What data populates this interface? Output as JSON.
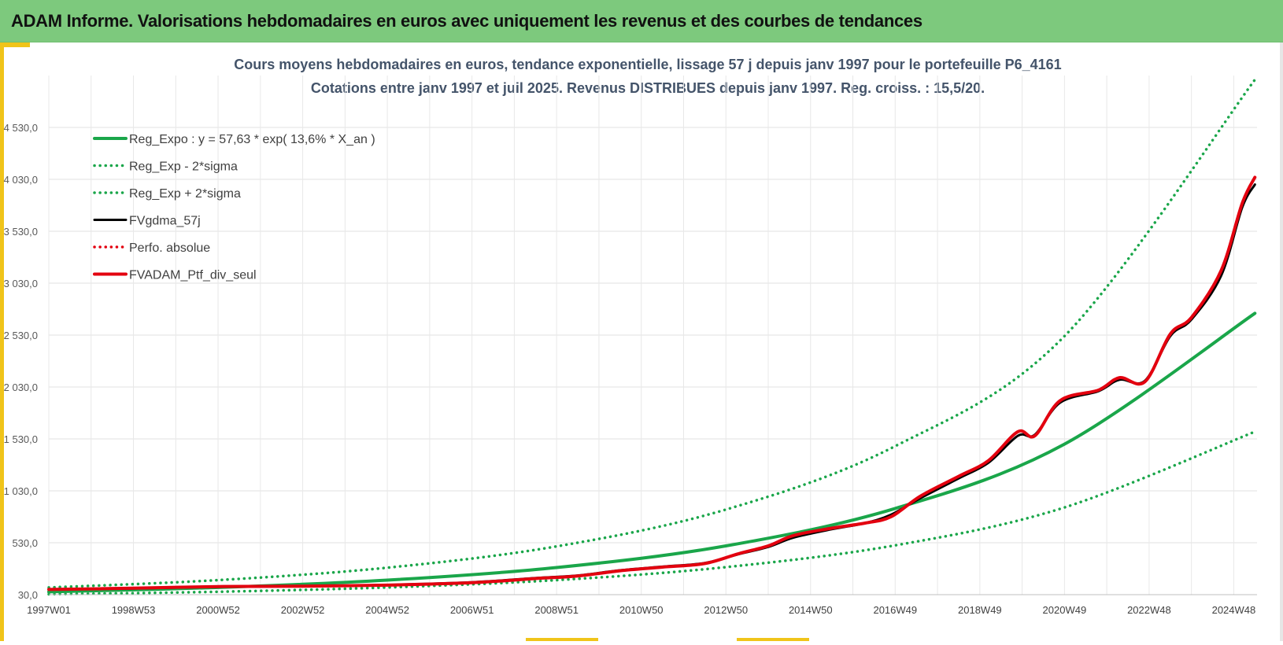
{
  "header": {
    "title": "ADAM Informe. Valorisations hebdomadaires en euros avec uniquement les revenus et des courbes de tendances"
  },
  "colors": {
    "header_bg": "#7dc97d",
    "accent": "#f0c419",
    "trend_green": "#1aa64a",
    "fv_black": "#000000",
    "portfolio_red": "#e3000f"
  },
  "chart_data": {
    "type": "line",
    "title": "Cours moyens hebdomadaires en euros, tendance exponentielle, lissage 57 j depuis janv 1997 pour le portefeuille P6_4161",
    "subtitle": "Cotations entre janv 1997 et juil 2025. Revenus DISTRIBUES depuis janv 1997. Reg. croiss. : 15,5/20.",
    "x_tick_labels": [
      "1997W01",
      "1998W53",
      "2000W52",
      "2002W52",
      "2004W52",
      "2006W51",
      "2008W51",
      "2010W50",
      "2012W50",
      "2014W50",
      "2016W49",
      "2018W49",
      "2020W49",
      "2022W48",
      "2024W48"
    ],
    "x_ticks_years": [
      1997.0,
      1999.0,
      2001.0,
      2003.0,
      2005.0,
      2007.0,
      2009.0,
      2011.0,
      2013.0,
      2015.0,
      2017.0,
      2019.0,
      2021.0,
      2023.0,
      2025.0
    ],
    "x_range": [
      1997.0,
      2025.55
    ],
    "y_tick_labels": [
      "30,0",
      "530,0",
      "1 030,0",
      "1 530,0",
      "2 030,0",
      "2 530,0",
      "3 030,0",
      "3 530,0",
      "4 030,0",
      "4 530,0"
    ],
    "y_ticks": [
      30,
      530,
      1030,
      1530,
      2030,
      2530,
      3030,
      3530,
      4030,
      4530
    ],
    "ylim": [
      30,
      5030
    ],
    "grid": true,
    "legend_position": "top-left",
    "series": [
      {
        "name": "Reg_Expo : y = 57,63 * exp( 13,6% *  X_an )",
        "style": "solid",
        "color": "#1aa64a",
        "x": [
          1997.0,
          2001.0,
          2005.0,
          2009.0,
          2013.0,
          2017.0,
          2021.0,
          2025.5
        ],
        "y": [
          57.6,
          99.0,
          170.0,
          291.0,
          500.0,
          860.0,
          1480.0,
          2740.0
        ]
      },
      {
        "name": "Reg_Exp - 2*sigma",
        "style": "dotted",
        "color": "#1aa64a",
        "x": [
          1997.0,
          2001.0,
          2005.0,
          2009.0,
          2013.0,
          2017.0,
          2021.0,
          2025.5
        ],
        "y": [
          34.0,
          58.0,
          100.0,
          170.0,
          295.0,
          505.0,
          870.0,
          1600.0
        ]
      },
      {
        "name": "Reg_Exp + 2*sigma",
        "style": "dotted",
        "color": "#1aa64a",
        "x": [
          1997.0,
          2001.0,
          2005.0,
          2009.0,
          2013.0,
          2017.0,
          2021.0,
          2025.5
        ],
        "y": [
          99.0,
          170.0,
          290.0,
          495.0,
          850.0,
          1460.0,
          2520.0,
          4990.0
        ]
      },
      {
        "name": "FVgdma_57j",
        "style": "solid",
        "color": "#000000",
        "x": [
          1997.0,
          1999.0,
          2001.0,
          2003.0,
          2005.0,
          2007.0,
          2008.5,
          2009.5,
          2010.5,
          2011.5,
          2012.5,
          2013.3,
          2014.0,
          2014.6,
          2015.5,
          2016.3,
          2016.9,
          2017.6,
          2018.5,
          2019.2,
          2019.9,
          2020.3,
          2020.9,
          2021.8,
          2022.3,
          2022.9,
          2023.5,
          2024.0,
          2024.7,
          2025.2,
          2025.5
        ],
        "y": [
          80.0,
          90.0,
          105.0,
          110.0,
          125.0,
          150.0,
          190.0,
          215.0,
          265.0,
          300.0,
          335.0,
          420.0,
          490.0,
          580.0,
          660.0,
          720.0,
          800.0,
          960.0,
          1150.0,
          1300.0,
          1560.0,
          1570.0,
          1880.0,
          1990.0,
          2100.0,
          2090.0,
          2520.0,
          2680.0,
          3100.0,
          3760.0,
          3980.0
        ]
      },
      {
        "name": "Perfo. absolue",
        "style": "dotted",
        "color": "#e3000f",
        "x": [],
        "y": []
      },
      {
        "name": "FVADAM_Ptf_div_seul",
        "style": "solid",
        "color": "#e3000f",
        "x": [
          1997.0,
          1999.0,
          2001.0,
          2003.0,
          2005.0,
          2007.0,
          2008.5,
          2009.5,
          2010.5,
          2011.5,
          2012.5,
          2013.3,
          2014.0,
          2014.6,
          2015.5,
          2016.3,
          2016.9,
          2017.6,
          2018.5,
          2019.2,
          2019.9,
          2020.3,
          2020.9,
          2021.8,
          2022.3,
          2022.9,
          2023.5,
          2024.0,
          2024.7,
          2025.2,
          2025.5
        ],
        "y": [
          80.0,
          92.0,
          108.0,
          112.0,
          122.0,
          145.0,
          185.0,
          210.0,
          260.0,
          295.0,
          330.0,
          425.0,
          500.0,
          600.0,
          670.0,
          720.0,
          780.0,
          980.0,
          1170.0,
          1320.0,
          1600.0,
          1560.0,
          1900.0,
          2000.0,
          2120.0,
          2080.0,
          2540.0,
          2700.0,
          3150.0,
          3800.0,
          4050.0
        ]
      }
    ]
  }
}
